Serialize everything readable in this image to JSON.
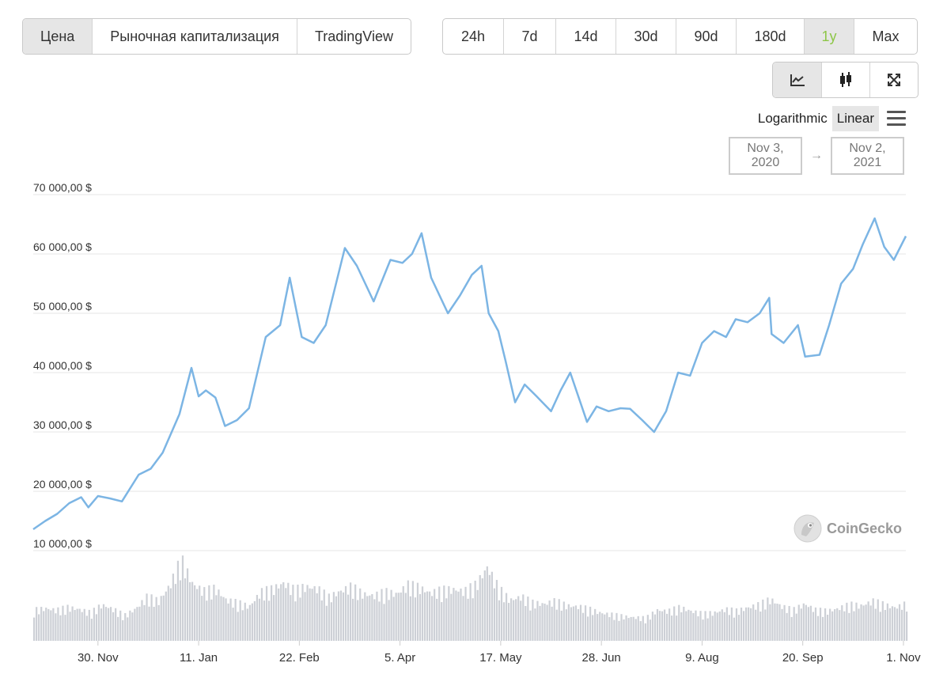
{
  "metric_tabs": [
    {
      "label": "Цена",
      "active": true
    },
    {
      "label": "Рыночная капитализация",
      "active": false
    },
    {
      "label": "TradingView",
      "active": false
    }
  ],
  "range_tabs": [
    {
      "label": "24h",
      "active": false
    },
    {
      "label": "7d",
      "active": false
    },
    {
      "label": "14d",
      "active": false
    },
    {
      "label": "30d",
      "active": false
    },
    {
      "label": "90d",
      "active": false
    },
    {
      "label": "180d",
      "active": false
    },
    {
      "label": "1y",
      "active": true
    },
    {
      "label": "Max",
      "active": false
    }
  ],
  "chart_type_buttons": [
    {
      "icon": "line-chart-icon",
      "active": true
    },
    {
      "icon": "candlestick-icon",
      "active": false
    },
    {
      "icon": "fullscreen-icon",
      "active": false
    }
  ],
  "scale": {
    "logarithmic_label": "Logarithmic",
    "linear_label": "Linear",
    "active": "Linear"
  },
  "date_range": {
    "from": "Nov 3, 2020",
    "arrow": "→",
    "to": "Nov 2, 2021"
  },
  "watermark": {
    "text": "CoinGecko"
  },
  "colors": {
    "line": "#7cb5e4",
    "volume": "#cdd0d6",
    "grid": "#e6e6e6",
    "active_range": "#8dc647"
  },
  "chart_data": {
    "type": "line",
    "title": "",
    "xlabel": "",
    "ylabel": "",
    "ylim": [
      10000,
      70000
    ],
    "y_ticks": [
      {
        "value": 70000,
        "label": "70 000,00 $"
      },
      {
        "value": 60000,
        "label": "60 000,00 $"
      },
      {
        "value": 50000,
        "label": "50 000,00 $"
      },
      {
        "value": 40000,
        "label": "40 000,00 $"
      },
      {
        "value": 30000,
        "label": "30 000,00 $"
      },
      {
        "value": 20000,
        "label": "20 000,00 $"
      },
      {
        "value": 10000,
        "label": "10 000,00 $"
      }
    ],
    "x_range": [
      "2020-11-03",
      "2021-11-02"
    ],
    "x_ticks": [
      {
        "date": "2020-11-30",
        "label": "30. Nov"
      },
      {
        "date": "2021-01-11",
        "label": "11. Jan"
      },
      {
        "date": "2021-02-22",
        "label": "22. Feb"
      },
      {
        "date": "2021-04-05",
        "label": "5. Apr"
      },
      {
        "date": "2021-05-17",
        "label": "17. May"
      },
      {
        "date": "2021-06-28",
        "label": "28. Jun"
      },
      {
        "date": "2021-08-09",
        "label": "9. Aug"
      },
      {
        "date": "2021-09-20",
        "label": "20. Sep"
      },
      {
        "date": "2021-11-01",
        "label": "1. Nov"
      }
    ],
    "grid": true,
    "legend": "none",
    "series": [
      {
        "x": [
          "2020-11-03",
          "2020-11-08",
          "2020-11-13",
          "2020-11-18",
          "2020-11-23",
          "2020-11-26",
          "2020-11-30",
          "2020-12-05",
          "2020-12-10",
          "2020-12-17",
          "2020-12-22",
          "2020-12-27",
          "2021-01-03",
          "2021-01-08",
          "2021-01-11",
          "2021-01-14",
          "2021-01-18",
          "2021-01-22",
          "2021-01-27",
          "2021-02-01",
          "2021-02-08",
          "2021-02-14",
          "2021-02-18",
          "2021-02-21",
          "2021-02-23",
          "2021-02-28",
          "2021-03-05",
          "2021-03-13",
          "2021-03-18",
          "2021-03-25",
          "2021-04-01",
          "2021-04-06",
          "2021-04-10",
          "2021-04-14",
          "2021-04-18",
          "2021-04-25",
          "2021-04-30",
          "2021-05-05",
          "2021-05-09",
          "2021-05-12",
          "2021-05-16",
          "2021-05-19",
          "2021-05-23",
          "2021-05-27",
          "2021-06-01",
          "2021-06-07",
          "2021-06-11",
          "2021-06-15",
          "2021-06-22",
          "2021-06-26",
          "2021-07-01",
          "2021-07-06",
          "2021-07-10",
          "2021-07-15",
          "2021-07-20",
          "2021-07-25",
          "2021-07-30",
          "2021-08-04",
          "2021-08-09",
          "2021-08-14",
          "2021-08-19",
          "2021-08-23",
          "2021-08-28",
          "2021-09-02",
          "2021-09-06",
          "2021-09-07",
          "2021-09-12",
          "2021-09-18",
          "2021-09-21",
          "2021-09-27",
          "2021-10-01",
          "2021-10-06",
          "2021-10-11",
          "2021-10-15",
          "2021-10-20",
          "2021-10-24",
          "2021-10-28",
          "2021-11-02"
        ],
        "values": [
          13600,
          15000,
          16200,
          18000,
          19000,
          17300,
          19200,
          18800,
          18300,
          22800,
          23800,
          26500,
          33000,
          40800,
          36000,
          37000,
          35800,
          31000,
          32000,
          34000,
          46000,
          48000,
          56000,
          50000,
          46000,
          45000,
          48000,
          61000,
          58000,
          52000,
          59000,
          58500,
          60000,
          63500,
          56000,
          50000,
          53000,
          56500,
          58000,
          50000,
          47000,
          42000,
          35000,
          38000,
          36000,
          33500,
          37000,
          40000,
          31700,
          34300,
          33500,
          34000,
          33900,
          32000,
          30000,
          33500,
          40000,
          39500,
          45000,
          47000,
          46000,
          49000,
          48500,
          50000,
          52600,
          46500,
          45000,
          48000,
          42700,
          43000,
          48000,
          55000,
          57500,
          61600,
          66000,
          61200,
          59000,
          63000
        ]
      }
    ],
    "volume": {
      "values_billion_usd": [
        34,
        36,
        34,
        37,
        35,
        31,
        40,
        35,
        28,
        36,
        49,
        44,
        62,
        90,
        63,
        55,
        58,
        45,
        42,
        38,
        54,
        57,
        64,
        56,
        60,
        58,
        48,
        55,
        60,
        52,
        50,
        54,
        52,
        62,
        59,
        53,
        56,
        57,
        55,
        62,
        82,
        58,
        45,
        49,
        42,
        41,
        44,
        39,
        38,
        35,
        31,
        29,
        27,
        26,
        25,
        34,
        33,
        37,
        33,
        30,
        31,
        35,
        33,
        37,
        40,
        46,
        38,
        34,
        41,
        34,
        33,
        36,
        40,
        39,
        44,
        40,
        37,
        41
      ]
    }
  }
}
